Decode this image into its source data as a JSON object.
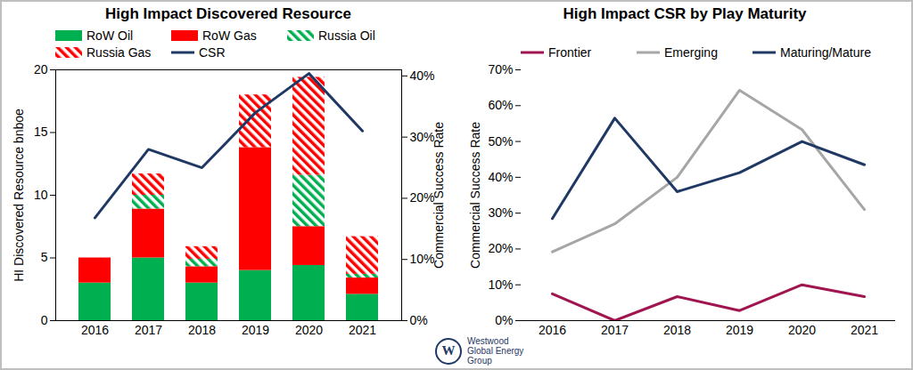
{
  "chart_data": [
    {
      "type": "bar",
      "title": "High Impact Discovered Resource",
      "stacked": true,
      "legend": "top",
      "categories": [
        "2016",
        "2017",
        "2018",
        "2019",
        "2020",
        "2021"
      ],
      "ylabel": "HI Discovered Resource bnboe",
      "ylim": [
        0,
        20
      ],
      "yticks": [
        0,
        5,
        10,
        15,
        20
      ],
      "y2label": "Commercial Success Rate",
      "y2lim": [
        0,
        41
      ],
      "y2ticks": [
        {
          "value": 0,
          "label": "0%"
        },
        {
          "value": 10,
          "label": "10%"
        },
        {
          "value": 20,
          "label": "20%"
        },
        {
          "value": 30,
          "label": "30%"
        },
        {
          "value": 40,
          "label": "40%"
        }
      ],
      "series": [
        {
          "name": "RoW Oil",
          "type": "bar",
          "color": "#00b050",
          "line_style": "solid",
          "values": [
            3.0,
            5.0,
            3.0,
            4.0,
            4.4,
            2.1
          ]
        },
        {
          "name": "RoW Gas",
          "type": "bar",
          "color": "#ff0000",
          "line_style": "solid",
          "values": [
            2.0,
            3.9,
            1.3,
            9.8,
            3.1,
            1.3
          ]
        },
        {
          "name": "Russia Oil",
          "type": "bar",
          "color": "#00b050",
          "line_style": "hatched",
          "values": [
            0,
            1.1,
            0.6,
            0,
            4.1,
            0.3
          ]
        },
        {
          "name": "Russia Gas",
          "type": "bar",
          "color": "#ff0000",
          "line_style": "hatched",
          "values": [
            0,
            1.7,
            1.0,
            4.2,
            7.8,
            3.0
          ]
        },
        {
          "name": "CSR",
          "type": "line",
          "axis": "y2",
          "color": "#1f3864",
          "values": [
            16.8,
            28,
            25,
            34,
            40.4,
            31
          ]
        }
      ]
    },
    {
      "type": "line",
      "title": "High Impact CSR by Play Maturity",
      "legend": "top",
      "categories": [
        "2016",
        "2017",
        "2018",
        "2019",
        "2020",
        "2021"
      ],
      "ylabel": "Commercial Success Rate",
      "ylim": [
        0,
        70
      ],
      "yticks": [
        {
          "value": 0,
          "label": "0%"
        },
        {
          "value": 10,
          "label": "10%"
        },
        {
          "value": 20,
          "label": "20%"
        },
        {
          "value": 30,
          "label": "30%"
        },
        {
          "value": 40,
          "label": "40%"
        },
        {
          "value": 50,
          "label": "50%"
        },
        {
          "value": 60,
          "label": "60%"
        },
        {
          "value": 70,
          "label": "70%"
        }
      ],
      "series": [
        {
          "name": "Frontier",
          "color": "#a0154f",
          "values": [
            7.5,
            0,
            6.7,
            2.8,
            10,
            6.7
          ]
        },
        {
          "name": "Emerging",
          "color": "#a6a6a6",
          "values": [
            19.2,
            27,
            40,
            64.3,
            53.3,
            31
          ]
        },
        {
          "name": "Maturing/Mature",
          "color": "#1f3864",
          "values": [
            28.5,
            56.5,
            36,
            41.3,
            50,
            43.5
          ]
        }
      ]
    }
  ],
  "logo": {
    "mark": "W",
    "lines": [
      "Westwood",
      "Global Energy",
      "Group"
    ]
  }
}
